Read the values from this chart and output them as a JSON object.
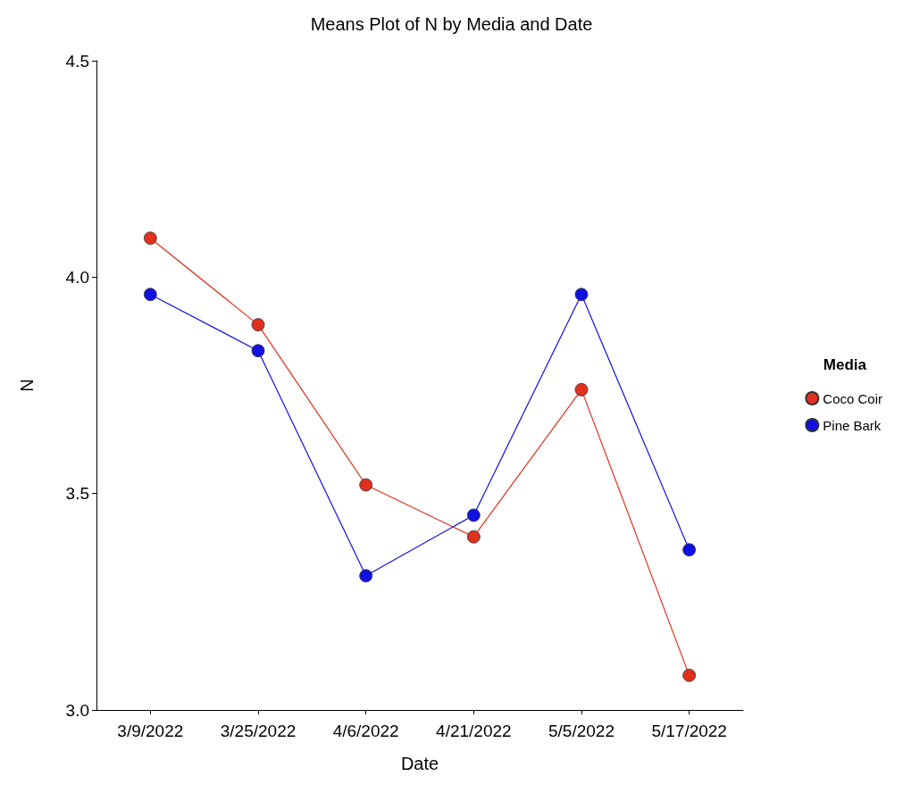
{
  "chart_data": {
    "type": "line",
    "title": "Means Plot of N by Media and Date",
    "xlabel": "Date",
    "ylabel": "N",
    "legend_title": "Media",
    "categories": [
      "3/9/2022",
      "3/25/2022",
      "4/6/2022",
      "4/21/2022",
      "5/5/2022",
      "5/17/2022"
    ],
    "series": [
      {
        "name": "Coco Coir",
        "color": "#e0301e",
        "values": [
          4.09,
          3.89,
          3.52,
          3.4,
          3.74,
          3.08
        ]
      },
      {
        "name": "Pine Bark",
        "color": "#1010e0",
        "values": [
          3.96,
          3.83,
          3.31,
          3.45,
          3.96,
          3.37
        ]
      }
    ],
    "ylim": [
      3.0,
      4.5
    ],
    "yticks": [
      {
        "value": 3,
        "label": "3.0"
      },
      3.5,
      {
        "value": 4,
        "label": "4.0"
      },
      4.5
    ],
    "grid": false,
    "legend": "right",
    "marker": "circle",
    "line_style": "solid"
  }
}
